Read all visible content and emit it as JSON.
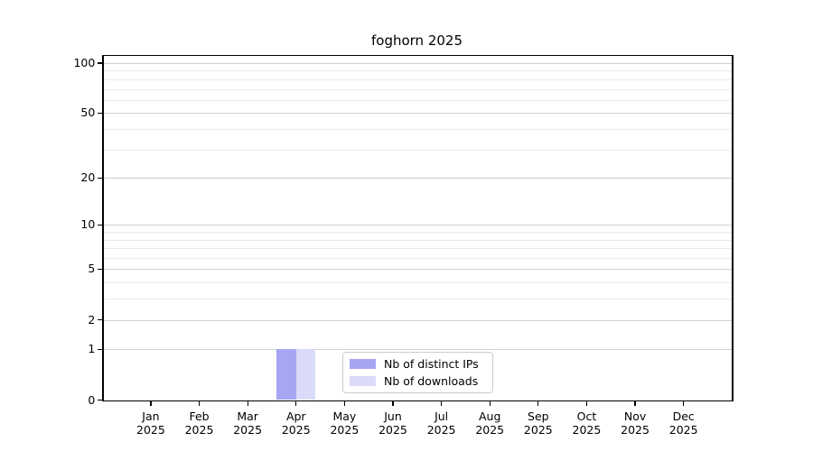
{
  "chart_data": {
    "type": "bar",
    "title": "foghorn 2025",
    "categories": [
      "Jan",
      "Feb",
      "Mar",
      "Apr",
      "May",
      "Jun",
      "Jul",
      "Aug",
      "Sep",
      "Oct",
      "Nov",
      "Dec"
    ],
    "category_year": "2025",
    "series": [
      {
        "name": "Nb of distinct IPs",
        "color": "#a6a6f5",
        "values": [
          0,
          0,
          0,
          1,
          0,
          0,
          0,
          0,
          0,
          0,
          0,
          0
        ]
      },
      {
        "name": "Nb of downloads",
        "color": "#dadaf9",
        "values": [
          0,
          0,
          0,
          1,
          0,
          0,
          0,
          0,
          0,
          0,
          0,
          0
        ]
      }
    ],
    "y_axis": {
      "scale": "log1p",
      "major_ticks": [
        0,
        1,
        2,
        5,
        10,
        20,
        50,
        100
      ],
      "minor_ticks": [
        3,
        4,
        6,
        7,
        8,
        9,
        30,
        40,
        60,
        70,
        80,
        90
      ],
      "range_max": 112
    },
    "grid": "on",
    "legend_position": "inside-bottom-center"
  },
  "colors": {
    "grid_major": "#cfcfcf",
    "grid_minor": "#eaeaea",
    "spine": "#000000",
    "legend_border": "#cccccc",
    "background": "#ffffff"
  }
}
